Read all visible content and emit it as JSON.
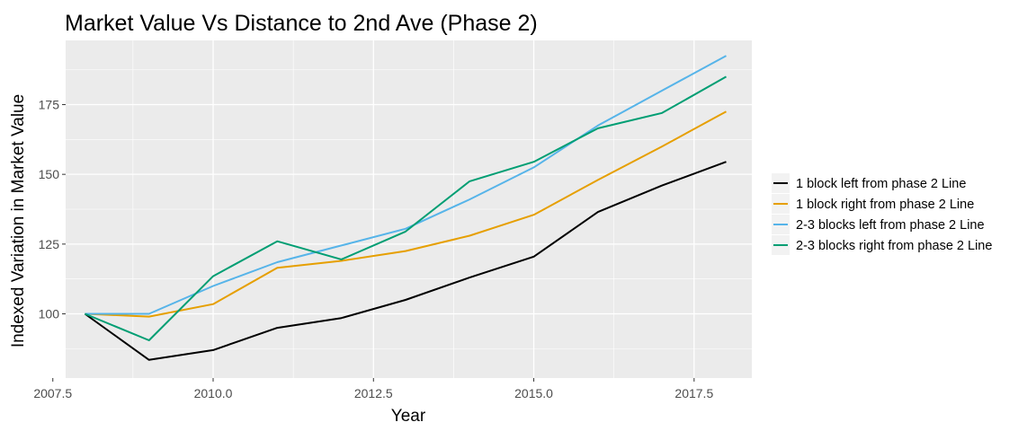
{
  "chart_data": {
    "type": "line",
    "title": "Market Value Vs Distance to 2nd Ave (Phase 2)",
    "xlabel": "Year",
    "ylabel": "Indexed Variation in Market Value",
    "xlim": [
      2007.7,
      2018.4
    ],
    "ylim": [
      77,
      198
    ],
    "x_ticks": [
      2007.5,
      2010.0,
      2012.5,
      2015.0,
      2017.5
    ],
    "x_tick_labels": [
      "2007.5",
      "2010.0",
      "2012.5",
      "2015.0",
      "2017.5"
    ],
    "y_ticks": [
      100,
      125,
      150,
      175
    ],
    "y_tick_labels": [
      "100",
      "125",
      "150",
      "175"
    ],
    "x": [
      2008,
      2009,
      2010,
      2011,
      2012,
      2013,
      2014,
      2015,
      2016,
      2017,
      2018
    ],
    "series": [
      {
        "name": "1 block left from phase 2 Line",
        "color": "#000000",
        "values": [
          100,
          83.5,
          87,
          95,
          98.5,
          105,
          113,
          120.5,
          136.5,
          146,
          154.5
        ]
      },
      {
        "name": "1 block right from phase 2 Line",
        "color": "#E69F00",
        "values": [
          100,
          99,
          103.5,
          116.5,
          119,
          122.5,
          128,
          135.5,
          148,
          160,
          172.5
        ]
      },
      {
        "name": "2-3 blocks left from phase 2 Line",
        "color": "#56B4E9",
        "values": [
          100,
          100,
          110,
          118.5,
          124.5,
          130.5,
          141,
          152.5,
          167.5,
          180,
          192.5
        ]
      },
      {
        "name": "2-3 blocks right from phase 2 Line",
        "color": "#009E73",
        "values": [
          100,
          90.5,
          113.5,
          126,
          119.5,
          129.5,
          147.5,
          154.5,
          166.5,
          172,
          185
        ]
      }
    ],
    "grid": true,
    "legend_position": "right",
    "background": "#EBEBEB",
    "grid_color": "#FFFFFF"
  }
}
